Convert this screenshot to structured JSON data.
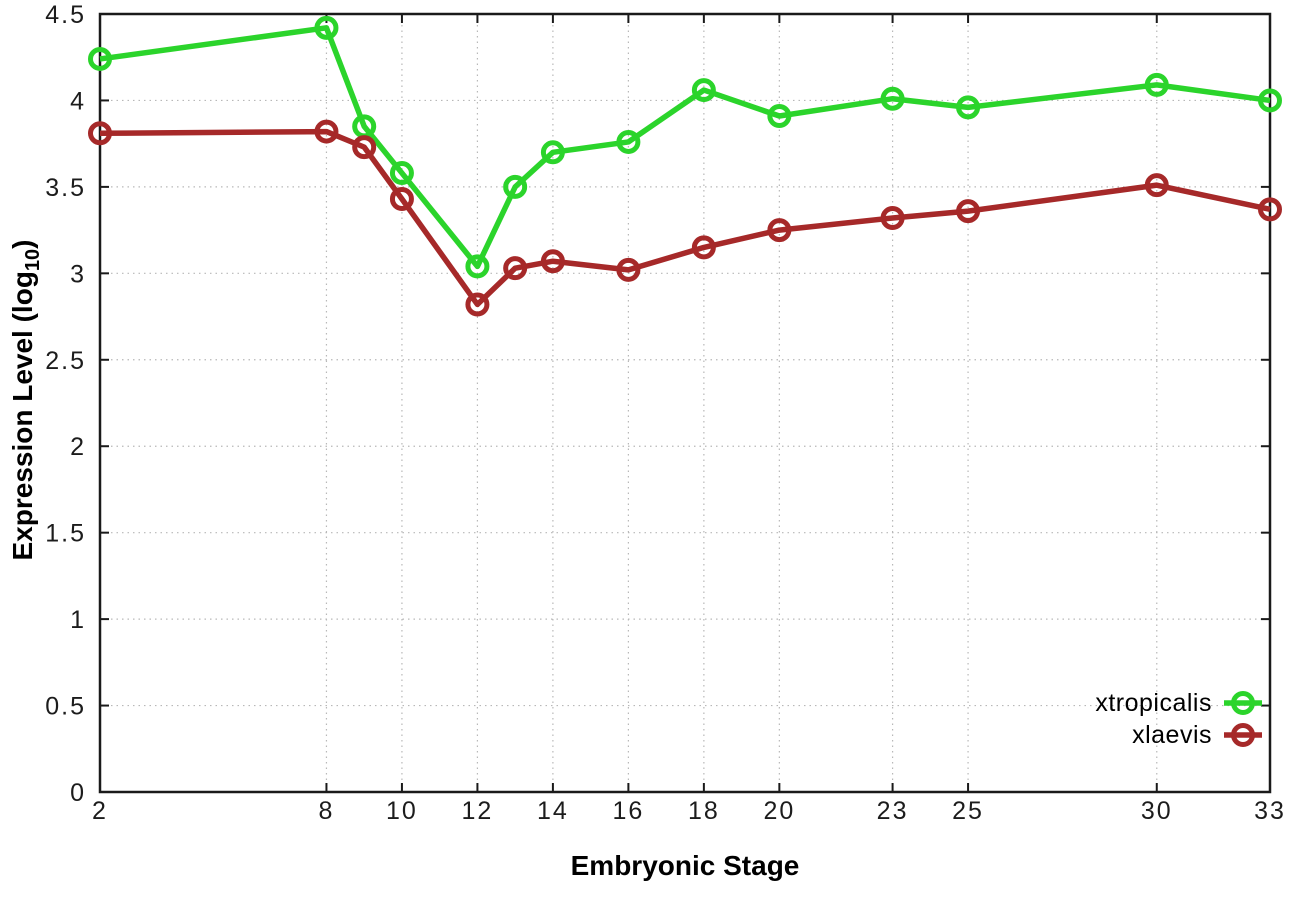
{
  "labels": {
    "xlabel": "Embryonic Stage",
    "ylabel_prefix": "Expression Level (log",
    "ylabel_sub": "10",
    "ylabel_suffix": ")"
  },
  "chart_data": {
    "type": "line",
    "title": "",
    "xlabel": "Embryonic Stage",
    "ylabel": "Expression Level (log10)",
    "x": [
      2,
      8,
      9,
      10,
      12,
      13,
      14,
      16,
      18,
      20,
      23,
      25,
      30,
      33
    ],
    "xlim": [
      2,
      33
    ],
    "ylim": [
      0,
      4.5
    ],
    "xticks": [
      2,
      8,
      10,
      12,
      14,
      16,
      18,
      20,
      23,
      25,
      30,
      33
    ],
    "yticks": [
      0,
      0.5,
      1,
      1.5,
      2,
      2.5,
      3,
      3.5,
      4,
      4.5
    ],
    "grid": true,
    "marker": "open-circle",
    "legend_position": "bottom-right-inside",
    "series": [
      {
        "name": "xtropicalis",
        "color": "#2bd42b",
        "values": [
          4.24,
          4.42,
          3.85,
          3.58,
          3.04,
          3.5,
          3.7,
          3.76,
          4.06,
          3.91,
          4.01,
          3.96,
          4.09,
          4.0
        ]
      },
      {
        "name": "xlaevis",
        "color": "#a62929",
        "values": [
          3.81,
          3.82,
          3.73,
          3.43,
          2.82,
          3.03,
          3.07,
          3.02,
          3.15,
          3.25,
          3.32,
          3.36,
          3.51,
          3.37
        ]
      }
    ]
  }
}
